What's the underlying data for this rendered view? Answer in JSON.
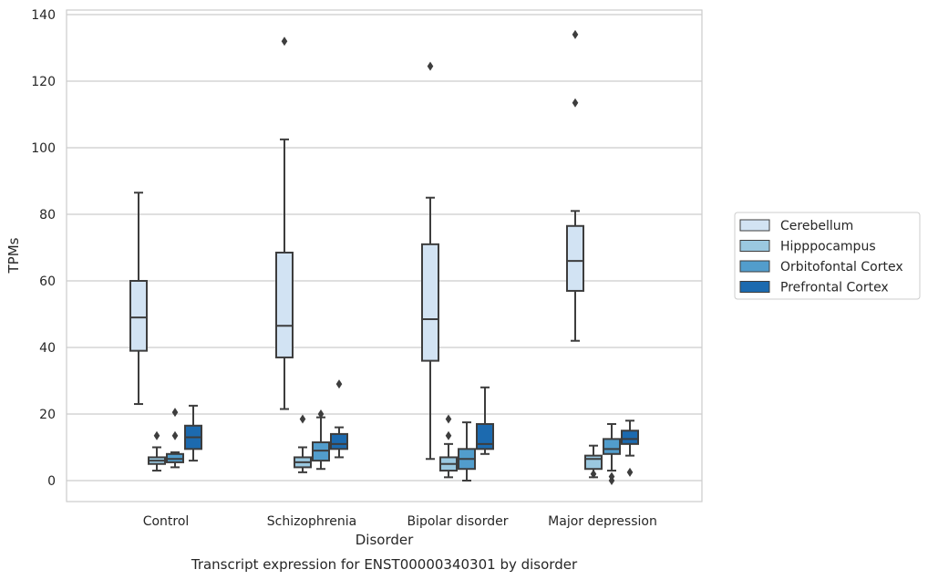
{
  "caption": "Transcript expression for ENST00000340301 by disorder",
  "chart_data": {
    "type": "box",
    "xlabel": "Disorder",
    "ylabel": "TPMs",
    "ylim": [
      -6.5,
      141
    ],
    "yticks": [
      0,
      20,
      40,
      60,
      80,
      100,
      120,
      140
    ],
    "grid": "horizontal",
    "legend_position": "right",
    "categories": [
      "Control",
      "Schizophrenia",
      "Bipolar disorder",
      "Major depression"
    ],
    "series": [
      {
        "name": "Cerebellum",
        "color": "#d2e3f3",
        "boxes": [
          {
            "whislo": 23,
            "q1": 39,
            "med": 49,
            "q3": 60,
            "whishi": 86.5,
            "fliers": []
          },
          {
            "whislo": 21.5,
            "q1": 37,
            "med": 46.5,
            "q3": 68.5,
            "whishi": 102.5,
            "fliers": [
              132
            ]
          },
          {
            "whislo": 6.5,
            "q1": 36,
            "med": 48.5,
            "q3": 71,
            "whishi": 85,
            "fliers": [
              124.5
            ]
          },
          {
            "whislo": 42,
            "q1": 57,
            "med": 66,
            "q3": 76.5,
            "whishi": 81,
            "fliers": [
              134,
              113.5
            ]
          }
        ]
      },
      {
        "name": "Hipppocampus",
        "color": "#9ac8e0",
        "boxes": [
          {
            "whislo": 3,
            "q1": 5,
            "med": 6,
            "q3": 7,
            "whishi": 10,
            "fliers": [
              13.5
            ]
          },
          {
            "whislo": 2.5,
            "q1": 4,
            "med": 5.5,
            "q3": 7,
            "whishi": 10,
            "fliers": [
              18.5
            ]
          },
          {
            "whislo": 1,
            "q1": 3,
            "med": 5,
            "q3": 7,
            "whishi": 11,
            "fliers": [
              13.5,
              18.5
            ]
          },
          {
            "whislo": 1,
            "q1": 3.5,
            "med": 6.5,
            "q3": 7.5,
            "whishi": 10.5,
            "fliers": [
              2
            ]
          }
        ]
      },
      {
        "name": "Orbitofontal Cortex",
        "color": "#529dcc",
        "boxes": [
          {
            "whislo": 4,
            "q1": 5.5,
            "med": 6.5,
            "q3": 8,
            "whishi": 8.5,
            "fliers": [
              13.5,
              20.5
            ]
          },
          {
            "whislo": 3.5,
            "q1": 6,
            "med": 9,
            "q3": 11.5,
            "whishi": 19,
            "fliers": [
              20
            ]
          },
          {
            "whislo": 0,
            "q1": 3.5,
            "med": 6.5,
            "q3": 9.5,
            "whishi": 17.5,
            "fliers": []
          },
          {
            "whislo": 3,
            "q1": 8,
            "med": 9.5,
            "q3": 12.5,
            "whishi": 17,
            "fliers": [
              0,
              1.2
            ]
          }
        ]
      },
      {
        "name": "Prefrontal Cortex",
        "color": "#1c6aaf",
        "boxes": [
          {
            "whislo": 6,
            "q1": 9.5,
            "med": 13,
            "q3": 16.5,
            "whishi": 22.5,
            "fliers": []
          },
          {
            "whislo": 7,
            "q1": 9.5,
            "med": 11,
            "q3": 14,
            "whishi": 16,
            "fliers": [
              29
            ]
          },
          {
            "whislo": 8,
            "q1": 9.5,
            "med": 11,
            "q3": 17,
            "whishi": 28,
            "fliers": []
          },
          {
            "whislo": 7.5,
            "q1": 11,
            "med": 12.5,
            "q3": 15,
            "whishi": 18,
            "fliers": [
              2.5
            ]
          }
        ]
      }
    ]
  }
}
